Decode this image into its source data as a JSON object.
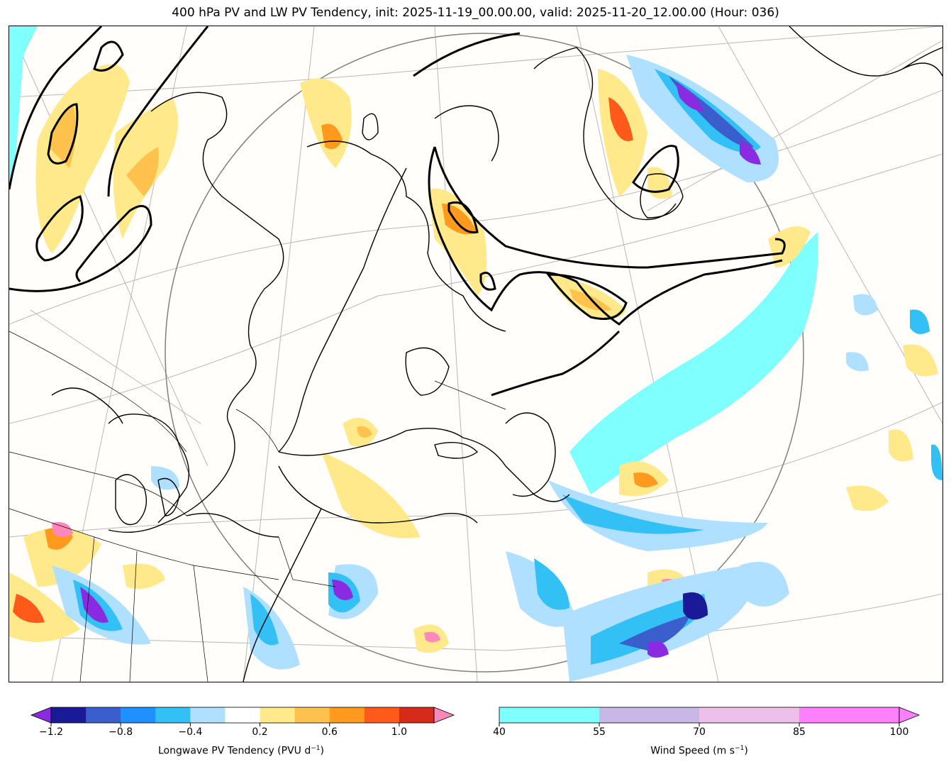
{
  "title": "400 hPa PV and LW PV Tendency, init: 2025-11-19_00.00.00, valid: 2025-11-20_12.00.00 (Hour: 036)",
  "colorbar_pv": {
    "label_main": "Longwave PV Tendency (PVU d",
    "label_exp": "−1",
    "label_close": ")",
    "ticks": [
      "−1.2",
      "−0.8",
      "−0.4",
      "0.2",
      "0.6",
      "1.0"
    ],
    "colors": [
      "#8a2be2",
      "#1a1a99",
      "#3a5fcd",
      "#1e90ff",
      "#33c1f5",
      "#b0e0ff",
      "#ffffff",
      "#ffe98a",
      "#ffc24d",
      "#ff9a1f",
      "#ff5a1a",
      "#d62a1a",
      "#ff88bb"
    ]
  },
  "colorbar_wind": {
    "label_main": "Wind Speed (m s",
    "label_exp": "−1",
    "label_close": ")",
    "ticks": [
      "40",
      "55",
      "70",
      "85",
      "100"
    ],
    "colors": [
      "#80ffff",
      "#c8b8e8",
      "#ecc0e8",
      "#ff80ff"
    ]
  },
  "map": {
    "land_outline_color": "#000000",
    "pv_contour_color": "#000000",
    "gridline_color": "#b0b0b0",
    "domain_circle_color": "#808080",
    "jet_color": "#80ffff"
  }
}
